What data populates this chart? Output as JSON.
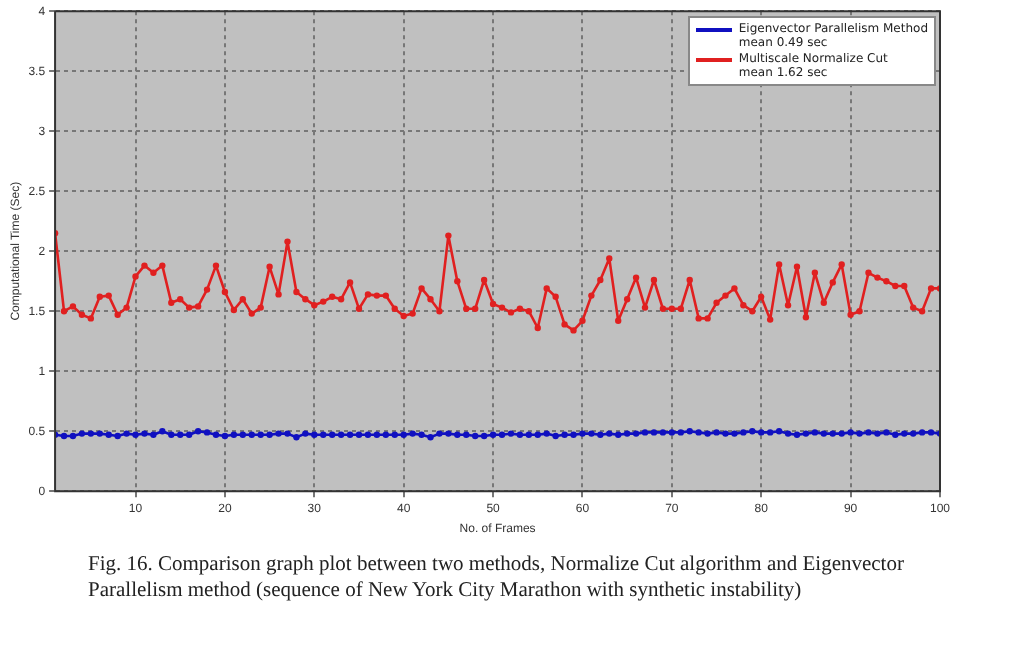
{
  "chart_data": {
    "type": "line",
    "xlabel": "No. of Frames",
    "ylabel": "Computational Time (Sec)",
    "x": [
      1,
      2,
      3,
      4,
      5,
      6,
      7,
      8,
      9,
      10,
      11,
      12,
      13,
      14,
      15,
      16,
      17,
      18,
      19,
      20,
      21,
      22,
      23,
      24,
      25,
      26,
      27,
      28,
      29,
      30,
      31,
      32,
      33,
      34,
      35,
      36,
      37,
      38,
      39,
      40,
      41,
      42,
      43,
      44,
      45,
      46,
      47,
      48,
      49,
      50,
      51,
      52,
      53,
      54,
      55,
      56,
      57,
      58,
      59,
      60,
      61,
      62,
      63,
      64,
      65,
      66,
      67,
      68,
      69,
      70,
      71,
      72,
      73,
      74,
      75,
      76,
      77,
      78,
      79,
      80,
      81,
      82,
      83,
      84,
      85,
      86,
      87,
      88,
      89,
      90,
      91,
      92,
      93,
      94,
      95,
      96,
      97,
      98,
      99,
      100
    ],
    "series": [
      {
        "name": "Eigenvector Parallelism Method\nmean 0.49 sec",
        "color": "#1010c0",
        "values": [
          0.47,
          0.46,
          0.46,
          0.48,
          0.48,
          0.48,
          0.47,
          0.46,
          0.48,
          0.47,
          0.48,
          0.47,
          0.5,
          0.47,
          0.47,
          0.47,
          0.5,
          0.49,
          0.47,
          0.46,
          0.47,
          0.47,
          0.47,
          0.47,
          0.47,
          0.48,
          0.48,
          0.45,
          0.48,
          0.47,
          0.47,
          0.47,
          0.47,
          0.47,
          0.47,
          0.47,
          0.47,
          0.47,
          0.47,
          0.47,
          0.48,
          0.47,
          0.45,
          0.48,
          0.48,
          0.47,
          0.47,
          0.46,
          0.46,
          0.47,
          0.47,
          0.48,
          0.47,
          0.47,
          0.47,
          0.48,
          0.46,
          0.47,
          0.47,
          0.48,
          0.48,
          0.47,
          0.48,
          0.47,
          0.48,
          0.48,
          0.49,
          0.49,
          0.49,
          0.49,
          0.49,
          0.5,
          0.49,
          0.48,
          0.49,
          0.48,
          0.48,
          0.49,
          0.5,
          0.49,
          0.49,
          0.5,
          0.48,
          0.47,
          0.48,
          0.49,
          0.48,
          0.48,
          0.48,
          0.49,
          0.48,
          0.49,
          0.48,
          0.49,
          0.47,
          0.48,
          0.48,
          0.49,
          0.49,
          0.48
        ]
      },
      {
        "name": "Multiscale Normalize Cut\nmean 1.62 sec",
        "color": "#e02020",
        "values": [
          2.15,
          1.5,
          1.54,
          1.47,
          1.44,
          1.62,
          1.63,
          1.47,
          1.53,
          1.79,
          1.88,
          1.82,
          1.88,
          1.57,
          1.6,
          1.53,
          1.54,
          1.68,
          1.88,
          1.66,
          1.51,
          1.6,
          1.48,
          1.53,
          1.87,
          1.64,
          2.08,
          1.66,
          1.6,
          1.55,
          1.58,
          1.62,
          1.6,
          1.74,
          1.52,
          1.64,
          1.63,
          1.63,
          1.52,
          1.46,
          1.48,
          1.69,
          1.6,
          1.5,
          2.13,
          1.75,
          1.52,
          1.52,
          1.76,
          1.56,
          1.53,
          1.49,
          1.52,
          1.5,
          1.36,
          1.69,
          1.62,
          1.39,
          1.34,
          1.42,
          1.63,
          1.76,
          1.94,
          1.42,
          1.6,
          1.78,
          1.53,
          1.76,
          1.52,
          1.52,
          1.52,
          1.76,
          1.44,
          1.44,
          1.57,
          1.63,
          1.69,
          1.55,
          1.5,
          1.62,
          1.43,
          1.89,
          1.55,
          1.87,
          1.45,
          1.82,
          1.57,
          1.74,
          1.89,
          1.47,
          1.5,
          1.82,
          1.78,
          1.75,
          1.71,
          1.71,
          1.53,
          1.5,
          1.69,
          1.69
        ]
      }
    ],
    "xlim": [
      1,
      100
    ],
    "xticks": [
      10,
      20,
      30,
      40,
      50,
      60,
      70,
      80,
      90,
      100
    ],
    "ylim": [
      0,
      4
    ],
    "yticks": [
      0,
      0.5,
      1,
      1.5,
      2,
      2.5,
      3,
      3.5,
      4
    ],
    "grid": true,
    "legend": "top right",
    "marker": "circle",
    "line_style": "solid",
    "annotations": [
      "Fig. 16. Comparison graph plot between two methods, Normalize Cut algorithm and Eigenvector Parallelism method (sequence of New York City Marathon with synthetic instability)"
    ]
  }
}
